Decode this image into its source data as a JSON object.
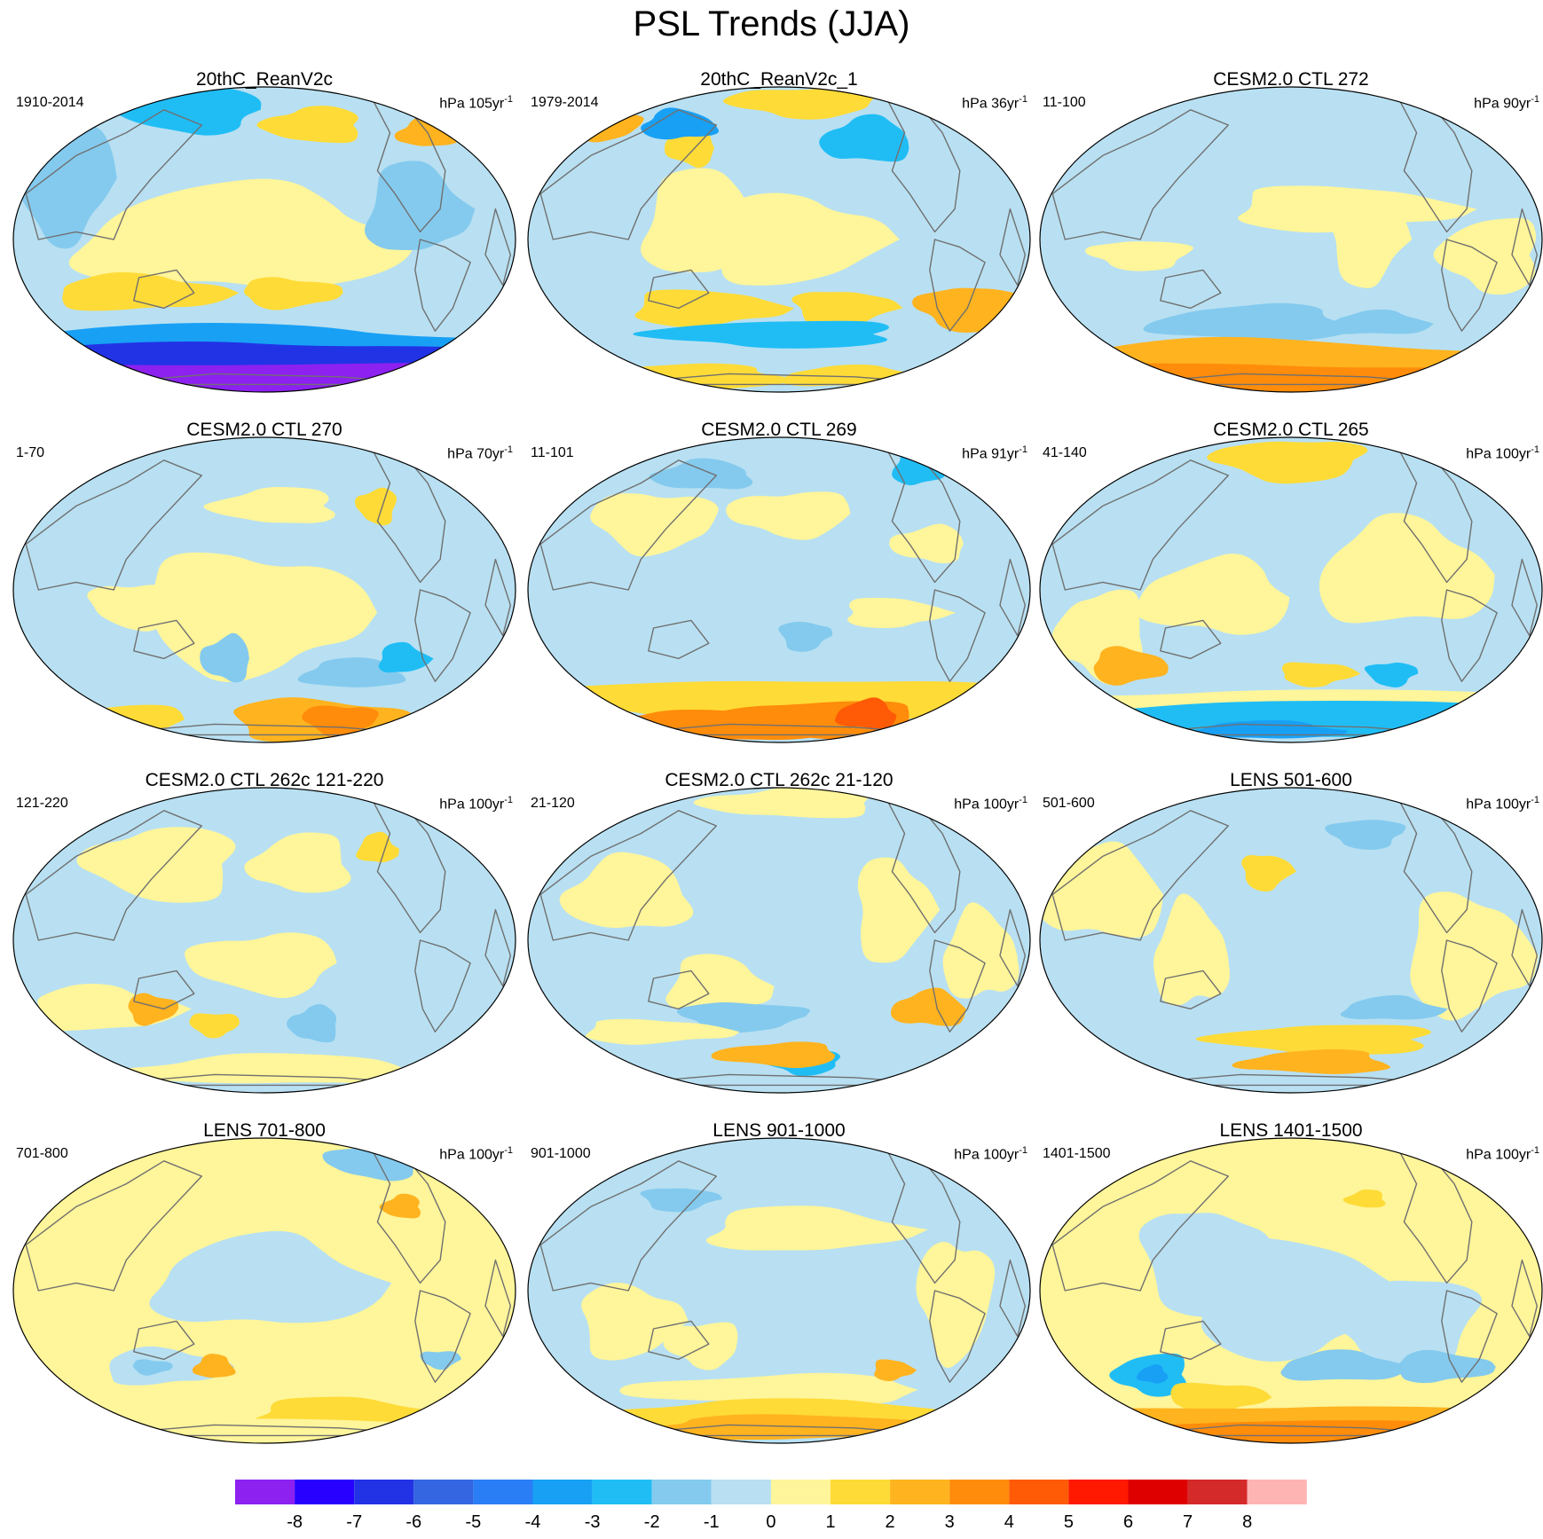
{
  "figure": {
    "title": "PSL Trends (JJA)"
  },
  "panels": [
    {
      "title": "20thC_ReanV2c",
      "period": "1910-2014",
      "units": "hPa 105yr",
      "units_exp": "-1",
      "pattern": "rean2c"
    },
    {
      "title": "20thC_ReanV2c_1",
      "period": "1979-2014",
      "units": "hPa 36yr",
      "units_exp": "-1",
      "pattern": "rean2c1"
    },
    {
      "title": "CESM2.0 CTL 272",
      "period": "11-100",
      "units": "hPa 90yr",
      "units_exp": "-1",
      "pattern": "ctl272"
    },
    {
      "title": "CESM2.0 CTL 270",
      "period": "1-70",
      "units": "hPa 70yr",
      "units_exp": "-1",
      "pattern": "ctl270"
    },
    {
      "title": "CESM2.0 CTL 269",
      "period": "11-101",
      "units": "hPa 91yr",
      "units_exp": "-1",
      "pattern": "ctl269"
    },
    {
      "title": "CESM2.0 CTL 265",
      "period": "41-140",
      "units": "hPa 100yr",
      "units_exp": "-1",
      "pattern": "ctl265"
    },
    {
      "title": "CESM2.0 CTL 262c 121-220",
      "period": "121-220",
      "units": "hPa 100yr",
      "units_exp": "-1",
      "pattern": "ctl262a"
    },
    {
      "title": "CESM2.0 CTL 262c 21-120",
      "period": "21-120",
      "units": "hPa 100yr",
      "units_exp": "-1",
      "pattern": "ctl262b"
    },
    {
      "title": "LENS 501-600",
      "period": "501-600",
      "units": "hPa 100yr",
      "units_exp": "-1",
      "pattern": "lens501"
    },
    {
      "title": "LENS 701-800",
      "period": "701-800",
      "units": "hPa 100yr",
      "units_exp": "-1",
      "pattern": "lens701"
    },
    {
      "title": "LENS 901-1000",
      "period": "901-1000",
      "units": "hPa 100yr",
      "units_exp": "-1",
      "pattern": "lens901"
    },
    {
      "title": "LENS 1401-1500",
      "period": "1401-1500",
      "units": "hPa 100yr",
      "units_exp": "-1",
      "pattern": "lens1401"
    }
  ],
  "colorbar": {
    "colors": [
      "#8c21f0",
      "#2800ff",
      "#2233e6",
      "#3366e0",
      "#2a7ef5",
      "#18a0f5",
      "#20bdf5",
      "#84caee",
      "#b8e0f2",
      "#fff59a",
      "#ffdb37",
      "#ffb31f",
      "#ff8c0a",
      "#ff5a05",
      "#ff1900",
      "#de0000",
      "#d42a2a",
      "#ffb4b4"
    ],
    "tick_labels": [
      "-8",
      "-7",
      "-6",
      "-5",
      "-4",
      "-3",
      "-2",
      "-1",
      "0",
      "1",
      "2",
      "3",
      "4",
      "5",
      "6",
      "7",
      "8"
    ]
  }
}
